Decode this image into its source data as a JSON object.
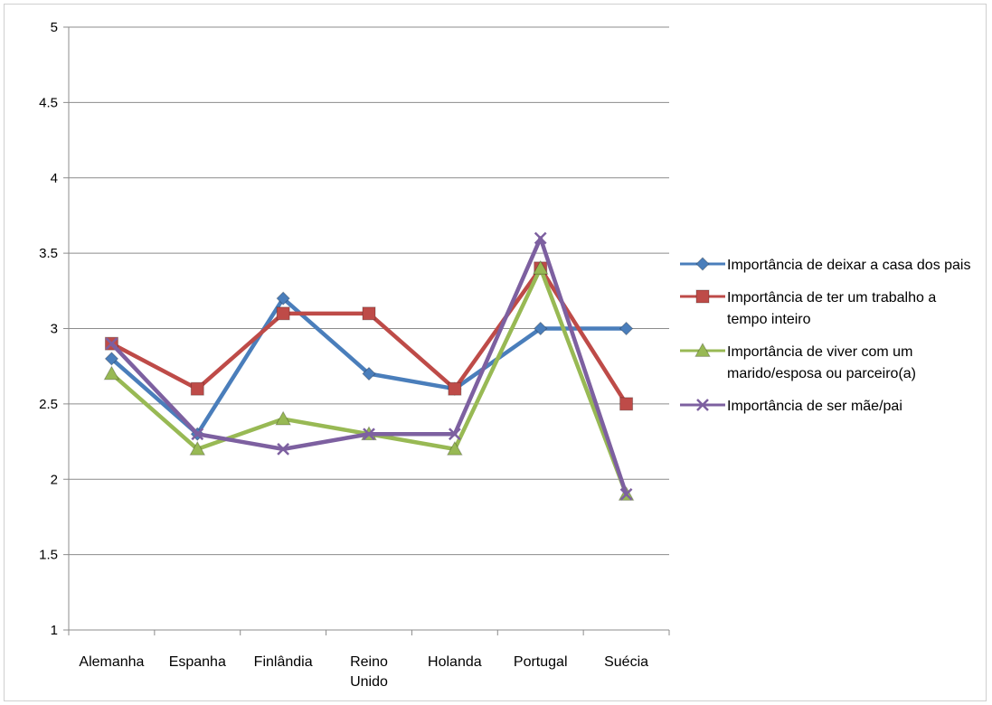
{
  "chart_data": {
    "type": "line",
    "categories": [
      "Alemanha",
      "Espanha",
      "Finlândia",
      "Reino\nUnido",
      "Holanda",
      "Portugal",
      "Suécia"
    ],
    "ylim": [
      1,
      5
    ],
    "yticks": [
      "1",
      "1.5",
      "2",
      "2.5",
      "3",
      "3.5",
      "4",
      "4.5",
      "5"
    ],
    "grid": "horizontal",
    "legend_position": "right",
    "series": [
      {
        "name": "Importância de deixar a casa dos pais",
        "color": "#4a7ebb",
        "marker": "diamond",
        "values": [
          2.8,
          2.3,
          3.2,
          2.7,
          2.6,
          3.0,
          3.0
        ]
      },
      {
        "name": "Importância de ter um trabalho a tempo inteiro",
        "color": "#be4b48",
        "marker": "square",
        "values": [
          2.9,
          2.6,
          3.1,
          3.1,
          2.6,
          3.4,
          2.5
        ]
      },
      {
        "name": "Importância de viver com um marido/esposa ou parceiro(a)",
        "color": "#98b954",
        "marker": "triangle",
        "values": [
          2.7,
          2.2,
          2.4,
          2.3,
          2.2,
          3.4,
          1.9
        ]
      },
      {
        "name": "Importância de ser mãe/pai",
        "color": "#7d60a0",
        "marker": "x",
        "values": [
          2.9,
          2.3,
          2.2,
          2.3,
          2.3,
          3.6,
          1.9
        ]
      }
    ]
  }
}
